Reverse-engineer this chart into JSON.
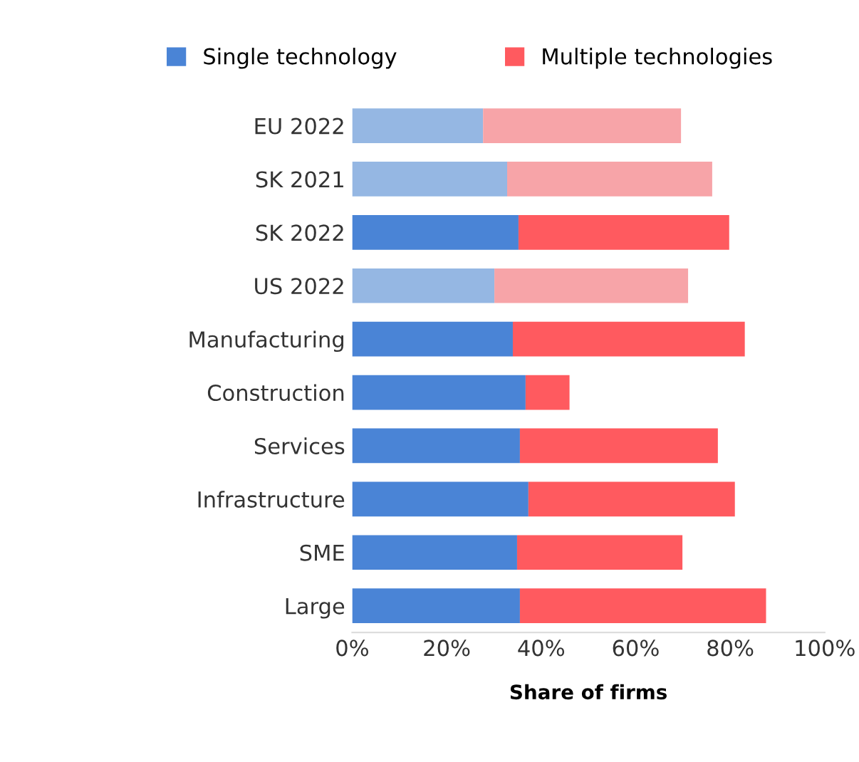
{
  "chart_data": {
    "type": "bar",
    "orientation": "horizontal",
    "stacked": true,
    "xlabel": "Share of firms",
    "legend": "top",
    "categories": [
      "EU 2022",
      "SK 2021",
      "SK 2022",
      "US 2022",
      "Manufacturing",
      "Construction",
      "Services",
      "Infrastructure",
      "SME",
      "Large"
    ],
    "series": [
      {
        "name": "Single technology",
        "color": "#4a84d6",
        "colors": [
          "#95b7e3",
          "#95b7e3",
          "#4a84d6",
          "#95b7e3",
          "#4a84d6",
          "#4a84d6",
          "#4a84d6",
          "#4a84d6",
          "#4a84d6",
          "#4a84d6"
        ],
        "values": [
          27.7,
          32.8,
          35.2,
          30.1,
          34.0,
          36.7,
          35.5,
          37.3,
          34.9,
          35.5
        ]
      },
      {
        "name": "Multiple technologies",
        "color": "#ff5a5f",
        "colors": [
          "#f7a4a8",
          "#f7a4a8",
          "#ff5a5f",
          "#f7a4a8",
          "#ff5a5f",
          "#ff5a5f",
          "#ff5a5f",
          "#ff5a5f",
          "#ff5a5f",
          "#ff5a5f"
        ],
        "values": [
          41.9,
          43.4,
          44.6,
          41.0,
          49.1,
          9.3,
          41.9,
          43.7,
          35.0,
          52.1
        ]
      }
    ],
    "xlim": [
      0,
      100
    ],
    "xticks": [
      {
        "value": 0,
        "label": "0%"
      },
      {
        "value": 20,
        "label": "20%"
      },
      {
        "value": 40,
        "label": "40%"
      },
      {
        "value": 60,
        "label": "60%"
      },
      {
        "value": 80,
        "label": "80%"
      },
      {
        "value": 100,
        "label": "100%"
      }
    ]
  }
}
